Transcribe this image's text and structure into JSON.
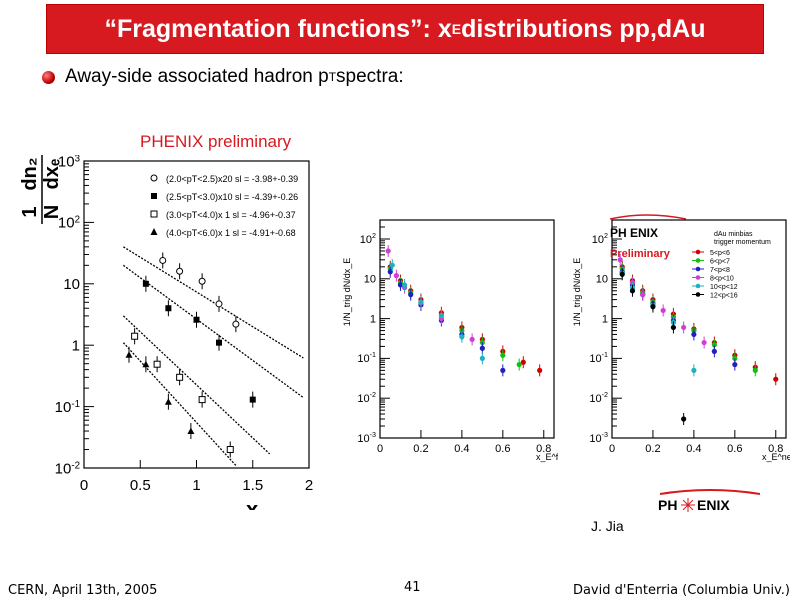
{
  "slide": {
    "title_main": "“Fragmentation functions”: x",
    "title_sub": "E",
    "title_tail": " distributions pp,dAu",
    "bullet_main": "Away-side associated hadron p",
    "bullet_sub": "T",
    "bullet_tail": " spectra:",
    "prelim_label": "PHENIX preliminary",
    "credit": "J. Jia",
    "footer_left": "CERN, April 13th, 2005",
    "footer_center": "41",
    "footer_right": "David d'Enterria (Columbia Univ.)"
  },
  "colors": {
    "title_bg": "#d71920",
    "accent_red": "#d71920"
  },
  "chart_data": [
    {
      "type": "scatter",
      "xlabel": "x_E",
      "ylabel": "1/N dn2/dx_E",
      "xlim": [
        0,
        2
      ],
      "ylim": [
        0.01,
        1000
      ],
      "log_y": true,
      "x_ticks": [
        "0",
        "0.5",
        "1",
        "1.5",
        "2"
      ],
      "y_ticks": [
        "10^-2",
        "10^-1",
        "1",
        "10",
        "10^2",
        "10^3"
      ],
      "legend_position": "top-right",
      "series": [
        {
          "name": "(2.0<pT<2.5)x20  sl = -3.98+-0.39",
          "marker": "open-circle",
          "x": [
            0.7,
            0.85,
            1.05,
            1.2,
            1.35
          ],
          "y": [
            24,
            16,
            11,
            4.7,
            2.2
          ]
        },
        {
          "name": "(2.5<pT<3.0)x10  sl = -4.39+-0.26",
          "marker": "filled-square",
          "x": [
            0.55,
            0.75,
            1.0,
            1.2,
            1.5
          ],
          "y": [
            10,
            4.0,
            2.6,
            1.1,
            0.13
          ]
        },
        {
          "name": "(3.0<pT<4.0)x 1  sl = -4.96+-0.37",
          "marker": "open-square",
          "x": [
            0.45,
            0.65,
            0.85,
            1.05,
            1.3
          ],
          "y": [
            1.4,
            0.49,
            0.3,
            0.13,
            0.02
          ]
        },
        {
          "name": "(4.0<pT<6.0)x 1  sl = -4.91+-0.68",
          "marker": "filled-triangle",
          "x": [
            0.4,
            0.55,
            0.75,
            0.95
          ],
          "y": [
            0.7,
            0.49,
            0.12,
            0.04
          ]
        }
      ],
      "fits": [
        {
          "x": [
            0.35,
            1.95
          ],
          "y": [
            40,
            0.62
          ]
        },
        {
          "x": [
            0.35,
            1.95
          ],
          "y": [
            20,
            0.14
          ]
        },
        {
          "x": [
            0.35,
            1.65
          ],
          "y": [
            3.0,
            0.017
          ]
        },
        {
          "x": [
            0.35,
            1.35
          ],
          "y": [
            1.1,
            0.011
          ]
        }
      ]
    },
    {
      "type": "scatter",
      "xlabel": "x_E^far",
      "ylabel": "1/N_trig dN/dx_E",
      "xlim": [
        0,
        0.85
      ],
      "ylim": [
        0.001,
        300
      ],
      "log_y": true,
      "x_ticks": [
        "0",
        "0.2",
        "0.4",
        "0.6",
        "0.8"
      ],
      "y_ticks": [
        "10^-3",
        "10^-2",
        "10^-1",
        "1",
        "10",
        "10^2"
      ],
      "series": [
        {
          "name": "red",
          "color": "#d00000",
          "x": [
            0.05,
            0.1,
            0.15,
            0.2,
            0.3,
            0.4,
            0.5,
            0.6,
            0.7,
            0.78
          ],
          "y": [
            20,
            9,
            5,
            3,
            1.4,
            0.6,
            0.3,
            0.15,
            0.08,
            0.05
          ]
        },
        {
          "name": "green",
          "color": "#10c010",
          "x": [
            0.05,
            0.1,
            0.15,
            0.2,
            0.3,
            0.4,
            0.5,
            0.6,
            0.68
          ],
          "y": [
            18,
            8,
            4.5,
            2.5,
            1.2,
            0.5,
            0.25,
            0.12,
            0.07
          ]
        },
        {
          "name": "blue",
          "color": "#2020c0",
          "x": [
            0.05,
            0.1,
            0.15,
            0.2,
            0.3,
            0.4,
            0.5,
            0.6
          ],
          "y": [
            15,
            7,
            4,
            2.2,
            0.9,
            0.4,
            0.18,
            0.05
          ]
        },
        {
          "name": "magenta",
          "color": "#d040d0",
          "x": [
            0.04,
            0.08,
            0.12,
            0.2,
            0.3,
            0.45
          ],
          "y": [
            50,
            12,
            6,
            2.5,
            1,
            0.3
          ]
        },
        {
          "name": "cyan",
          "color": "#20b0c0",
          "x": [
            0.06,
            0.12,
            0.2,
            0.3,
            0.4,
            0.5
          ],
          "y": [
            22,
            7,
            2.6,
            1.2,
            0.35,
            0.1
          ]
        }
      ]
    },
    {
      "type": "scatter",
      "title": "Preliminary",
      "xlabel": "x_E^near",
      "ylabel": "1/N_trig dN/dx_E",
      "xlim": [
        0,
        0.85
      ],
      "ylim": [
        0.001,
        300
      ],
      "log_y": true,
      "x_ticks": [
        "0",
        "0.2",
        "0.4",
        "0.6",
        "0.8"
      ],
      "y_ticks": [
        "10^-3",
        "10^-2",
        "10^-1",
        "1",
        "10",
        "10^2"
      ],
      "legend_title": "dAu minbias trigger momentum",
      "legend": [
        "5<p<6",
        "6<p<7",
        "7<p<8",
        "8<p<10",
        "10<p<12",
        "12<p<16"
      ],
      "series": [
        {
          "name": "5<p<6",
          "color": "#d00000",
          "x": [
            0.05,
            0.1,
            0.15,
            0.2,
            0.3,
            0.4,
            0.5,
            0.6,
            0.7,
            0.8
          ],
          "y": [
            20,
            9,
            5,
            3,
            1.3,
            0.55,
            0.25,
            0.12,
            0.06,
            0.03
          ]
        },
        {
          "name": "6<p<7",
          "color": "#10c010",
          "x": [
            0.05,
            0.1,
            0.15,
            0.2,
            0.3,
            0.4,
            0.5,
            0.6,
            0.7
          ],
          "y": [
            18,
            8,
            4.5,
            2.6,
            1.1,
            0.5,
            0.22,
            0.1,
            0.05
          ]
        },
        {
          "name": "7<p<8",
          "color": "#2020c0",
          "x": [
            0.05,
            0.1,
            0.15,
            0.2,
            0.3,
            0.4,
            0.5,
            0.6
          ],
          "y": [
            15,
            7,
            4,
            2.3,
            0.9,
            0.4,
            0.15,
            0.07
          ]
        },
        {
          "name": "8<p<10",
          "color": "#d040d0",
          "x": [
            0.04,
            0.1,
            0.15,
            0.25,
            0.35,
            0.45
          ],
          "y": [
            30,
            8,
            4,
            1.6,
            0.6,
            0.25
          ]
        },
        {
          "name": "10<p<12",
          "color": "#20b0c0",
          "x": [
            0.05,
            0.1,
            0.2,
            0.3,
            0.4
          ],
          "y": [
            14,
            6,
            2.2,
            0.8,
            0.05
          ]
        },
        {
          "name": "12<p<16",
          "color": "#000000",
          "x": [
            0.05,
            0.1,
            0.2,
            0.3,
            0.35
          ],
          "y": [
            13,
            5,
            2,
            0.6,
            0.003
          ]
        }
      ]
    }
  ]
}
